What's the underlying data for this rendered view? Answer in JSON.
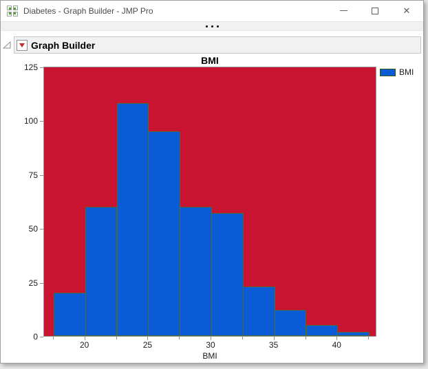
{
  "window": {
    "title": "Diabetes - Graph Builder - JMP Pro",
    "app_icon": "jmp-grid-icon",
    "controls": {
      "minimize": "minimize",
      "maximize": "maximize",
      "close": "✕"
    }
  },
  "splitter": {
    "icon": "grip-dots"
  },
  "outline": {
    "disclosure_icon": "open-disclosure-triangle",
    "menu_icon": "red-triangle-menu",
    "title": "Graph Builder"
  },
  "chart_data": {
    "type": "bar",
    "subtype": "histogram",
    "title": "BMI",
    "xlabel": "BMI",
    "ylabel": "",
    "legend": {
      "position": "right-top",
      "entries": [
        {
          "label": "BMI",
          "color": "#0b5bd6"
        }
      ]
    },
    "series": [
      {
        "name": "BMI",
        "bin_start": 17.5,
        "bin_width": 2.5,
        "bin_edges": [
          17.5,
          20,
          22.5,
          25,
          27.5,
          30,
          32.5,
          35,
          37.5,
          40,
          42.5
        ],
        "counts": [
          20,
          60,
          108,
          95,
          60,
          57,
          23,
          12,
          5,
          2
        ]
      }
    ],
    "x_ticks_major": [
      20,
      25,
      30,
      35,
      40
    ],
    "x_ticks_minor": [
      17.5,
      22.5,
      27.5,
      32.5,
      37.5,
      42.5
    ],
    "y_ticks": [
      0,
      25,
      50,
      75,
      100,
      125
    ],
    "x_range": [
      16.74,
      43.15
    ],
    "y_range": [
      0,
      125.3
    ],
    "grid": false,
    "colors": {
      "plot_background": "#c81430",
      "bar_fill": "#0b5bd6",
      "bar_border": "#4e6a33",
      "axis": "#9a9a9a",
      "tick_label": "#1c1c1c"
    }
  }
}
